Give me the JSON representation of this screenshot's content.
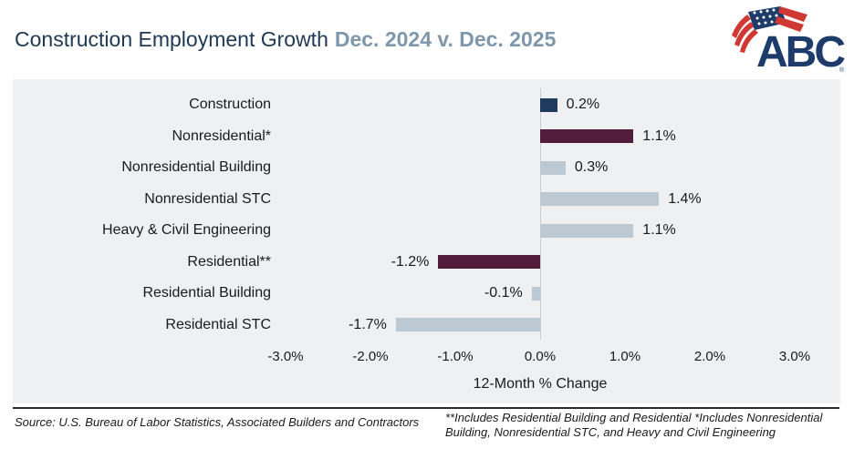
{
  "header": {
    "title": "Construction Employment Growth",
    "subtitle": "Dec. 2024 v. Dec. 2025",
    "logo": {
      "text": "ABC",
      "registered": "®",
      "navy": "#1e3c6b",
      "red": "#cf3833"
    }
  },
  "chart_data": {
    "type": "bar",
    "orientation": "horizontal",
    "title": "Construction Employment Growth Dec. 2024 v. Dec. 2025",
    "categories": [
      "Construction",
      "Nonresidential*",
      "Nonresidential Building",
      "Nonresidential STC",
      "Heavy & Civil Engineering",
      "Residential**",
      "Residential Building",
      "Residential STC"
    ],
    "values": [
      0.2,
      1.1,
      0.3,
      1.4,
      1.1,
      -1.2,
      -0.1,
      -1.7
    ],
    "value_labels": [
      "0.2%",
      "1.1%",
      "0.3%",
      "1.4%",
      "1.1%",
      "-1.2%",
      "-0.1%",
      "-1.7%"
    ],
    "bar_colors": [
      "#1e3a5c",
      "#521c3a",
      "#bdc9d2",
      "#bdc9d2",
      "#bdc9d2",
      "#521c3a",
      "#bdc9d2",
      "#bdc9d2"
    ],
    "xlabel": "12-Month % Change",
    "x_ticks": [
      "-3.0%",
      "-2.0%",
      "-1.0%",
      "0.0%",
      "1.0%",
      "2.0%",
      "3.0%"
    ],
    "x_tick_values": [
      -3,
      -2,
      -1,
      0,
      1,
      2,
      3
    ],
    "xlim": [
      -3,
      3
    ],
    "grid": false,
    "legend": false
  },
  "footer": {
    "source": "Source: U.S. Bureau of Labor Statistics, Associated Builders and Contractors",
    "footnote_line1": "**Includes Residential Building and Residential *Includes Nonresidential",
    "footnote_line2": "Building, Nonresidential STC, and Heavy and Civil Engineering"
  },
  "colors": {
    "navy_bar": "#1e3a5c",
    "maroon_bar": "#521c3a",
    "light_bar": "#bdc9d2",
    "panel_bg": "#eef0f2",
    "title_navy": "#1e3954",
    "subtitle_blue": "#7e97ab",
    "divider": "#2e2a33"
  }
}
